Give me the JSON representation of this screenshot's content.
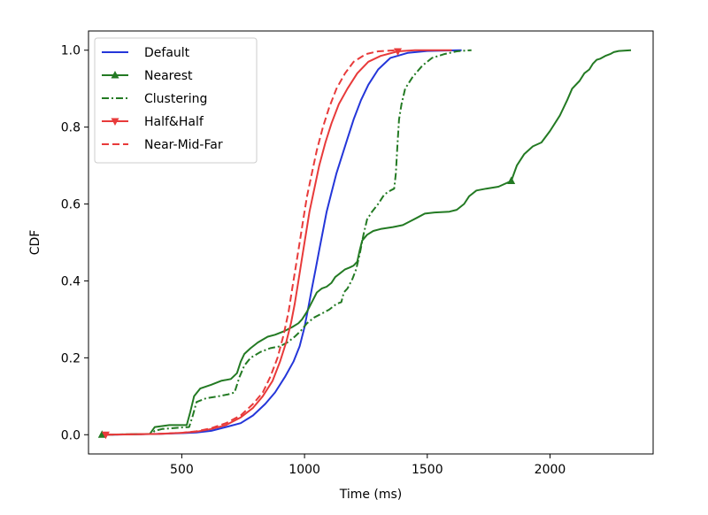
{
  "chart_data": {
    "type": "line",
    "xlabel": "Time (ms)",
    "ylabel": "CDF",
    "xlim": [
      120,
      2420
    ],
    "ylim": [
      -0.05,
      1.05
    ],
    "xticks": [
      500,
      1000,
      1500,
      2000
    ],
    "yticks": [
      0.0,
      0.2,
      0.4,
      0.6,
      0.8,
      1.0
    ],
    "xtick_labels": [
      "500",
      "1000",
      "1500",
      "2000"
    ],
    "ytick_labels": [
      "0.0",
      "0.2",
      "0.4",
      "0.6",
      "0.8",
      "1.0"
    ],
    "grid": false,
    "legend_position": "top-left",
    "series": [
      {
        "name": "Default",
        "color": "#2436d9",
        "style": "solid",
        "marker": "none",
        "points": [
          [
            200,
            0
          ],
          [
            400,
            0.002
          ],
          [
            500,
            0.004
          ],
          [
            560,
            0.006
          ],
          [
            620,
            0.01
          ],
          [
            680,
            0.02
          ],
          [
            740,
            0.03
          ],
          [
            790,
            0.05
          ],
          [
            840,
            0.08
          ],
          [
            880,
            0.11
          ],
          [
            920,
            0.15
          ],
          [
            955,
            0.19
          ],
          [
            980,
            0.23
          ],
          [
            1000,
            0.28
          ],
          [
            1015,
            0.33
          ],
          [
            1030,
            0.38
          ],
          [
            1045,
            0.43
          ],
          [
            1060,
            0.48
          ],
          [
            1075,
            0.53
          ],
          [
            1090,
            0.58
          ],
          [
            1110,
            0.63
          ],
          [
            1130,
            0.68
          ],
          [
            1150,
            0.72
          ],
          [
            1175,
            0.77
          ],
          [
            1200,
            0.82
          ],
          [
            1230,
            0.87
          ],
          [
            1260,
            0.91
          ],
          [
            1300,
            0.95
          ],
          [
            1350,
            0.98
          ],
          [
            1420,
            0.993
          ],
          [
            1500,
            0.998
          ],
          [
            1640,
            1.0
          ]
        ]
      },
      {
        "name": "Nearest",
        "color": "#237a23",
        "style": "solid",
        "marker": "triangle-up",
        "marker_x": [
          175,
          1842
        ],
        "points": [
          [
            175,
            0
          ],
          [
            370,
            0.002
          ],
          [
            390,
            0.02
          ],
          [
            450,
            0.025
          ],
          [
            520,
            0.025
          ],
          [
            535,
            0.06
          ],
          [
            550,
            0.1
          ],
          [
            575,
            0.12
          ],
          [
            620,
            0.13
          ],
          [
            660,
            0.14
          ],
          [
            700,
            0.145
          ],
          [
            725,
            0.16
          ],
          [
            740,
            0.19
          ],
          [
            755,
            0.21
          ],
          [
            780,
            0.225
          ],
          [
            810,
            0.24
          ],
          [
            850,
            0.255
          ],
          [
            880,
            0.26
          ],
          [
            920,
            0.27
          ],
          [
            950,
            0.28
          ],
          [
            975,
            0.29
          ],
          [
            990,
            0.3
          ],
          [
            1010,
            0.32
          ],
          [
            1030,
            0.345
          ],
          [
            1050,
            0.37
          ],
          [
            1070,
            0.38
          ],
          [
            1090,
            0.385
          ],
          [
            1110,
            0.395
          ],
          [
            1125,
            0.41
          ],
          [
            1145,
            0.42
          ],
          [
            1165,
            0.43
          ],
          [
            1185,
            0.435
          ],
          [
            1200,
            0.44
          ],
          [
            1215,
            0.45
          ],
          [
            1225,
            0.48
          ],
          [
            1235,
            0.505
          ],
          [
            1255,
            0.52
          ],
          [
            1280,
            0.53
          ],
          [
            1310,
            0.535
          ],
          [
            1360,
            0.54
          ],
          [
            1400,
            0.545
          ],
          [
            1430,
            0.555
          ],
          [
            1460,
            0.565
          ],
          [
            1490,
            0.575
          ],
          [
            1530,
            0.578
          ],
          [
            1590,
            0.58
          ],
          [
            1620,
            0.585
          ],
          [
            1650,
            0.6
          ],
          [
            1670,
            0.62
          ],
          [
            1700,
            0.635
          ],
          [
            1740,
            0.64
          ],
          [
            1790,
            0.645
          ],
          [
            1842,
            0.66
          ],
          [
            1865,
            0.7
          ],
          [
            1895,
            0.73
          ],
          [
            1930,
            0.75
          ],
          [
            1965,
            0.76
          ],
          [
            2000,
            0.79
          ],
          [
            2040,
            0.83
          ],
          [
            2070,
            0.87
          ],
          [
            2090,
            0.9
          ],
          [
            2120,
            0.92
          ],
          [
            2140,
            0.94
          ],
          [
            2160,
            0.95
          ],
          [
            2175,
            0.965
          ],
          [
            2190,
            0.975
          ],
          [
            2205,
            0.978
          ],
          [
            2225,
            0.985
          ],
          [
            2245,
            0.99
          ],
          [
            2260,
            0.995
          ],
          [
            2280,
            0.998
          ],
          [
            2330,
            1.0
          ]
        ]
      },
      {
        "name": "Clustering",
        "color": "#237a23",
        "style": "dashdot",
        "marker": "none",
        "points": [
          [
            175,
            0
          ],
          [
            375,
            0.002
          ],
          [
            390,
            0.01
          ],
          [
            420,
            0.015
          ],
          [
            480,
            0.018
          ],
          [
            530,
            0.02
          ],
          [
            545,
            0.05
          ],
          [
            560,
            0.085
          ],
          [
            600,
            0.095
          ],
          [
            650,
            0.1
          ],
          [
            690,
            0.105
          ],
          [
            715,
            0.11
          ],
          [
            735,
            0.15
          ],
          [
            755,
            0.18
          ],
          [
            780,
            0.2
          ],
          [
            820,
            0.215
          ],
          [
            860,
            0.225
          ],
          [
            900,
            0.23
          ],
          [
            930,
            0.24
          ],
          [
            960,
            0.255
          ],
          [
            985,
            0.27
          ],
          [
            1010,
            0.29
          ],
          [
            1040,
            0.305
          ],
          [
            1070,
            0.315
          ],
          [
            1100,
            0.325
          ],
          [
            1130,
            0.34
          ],
          [
            1150,
            0.345
          ],
          [
            1160,
            0.37
          ],
          [
            1175,
            0.38
          ],
          [
            1195,
            0.405
          ],
          [
            1210,
            0.43
          ],
          [
            1225,
            0.47
          ],
          [
            1240,
            0.52
          ],
          [
            1255,
            0.56
          ],
          [
            1275,
            0.58
          ],
          [
            1300,
            0.6
          ],
          [
            1325,
            0.625
          ],
          [
            1350,
            0.635
          ],
          [
            1365,
            0.64
          ],
          [
            1372,
            0.68
          ],
          [
            1378,
            0.75
          ],
          [
            1385,
            0.82
          ],
          [
            1395,
            0.86
          ],
          [
            1410,
            0.9
          ],
          [
            1440,
            0.93
          ],
          [
            1480,
            0.96
          ],
          [
            1520,
            0.98
          ],
          [
            1570,
            0.99
          ],
          [
            1620,
            0.997
          ],
          [
            1680,
            1.0
          ]
        ]
      },
      {
        "name": "Half&Half",
        "color": "#e83a3a",
        "style": "solid",
        "marker": "triangle-down",
        "marker_x": [
          190,
          1380
        ],
        "points": [
          [
            190,
            0
          ],
          [
            400,
            0.002
          ],
          [
            500,
            0.005
          ],
          [
            560,
            0.008
          ],
          [
            620,
            0.015
          ],
          [
            680,
            0.025
          ],
          [
            740,
            0.045
          ],
          [
            790,
            0.07
          ],
          [
            830,
            0.1
          ],
          [
            870,
            0.14
          ],
          [
            900,
            0.19
          ],
          [
            925,
            0.24
          ],
          [
            945,
            0.29
          ],
          [
            960,
            0.34
          ],
          [
            975,
            0.4
          ],
          [
            990,
            0.46
          ],
          [
            1005,
            0.52
          ],
          [
            1020,
            0.58
          ],
          [
            1040,
            0.64
          ],
          [
            1060,
            0.7
          ],
          [
            1085,
            0.76
          ],
          [
            1110,
            0.81
          ],
          [
            1140,
            0.86
          ],
          [
            1175,
            0.9
          ],
          [
            1215,
            0.94
          ],
          [
            1260,
            0.97
          ],
          [
            1310,
            0.985
          ],
          [
            1380,
            0.997
          ],
          [
            1450,
            1.0
          ],
          [
            1600,
            1.0
          ]
        ]
      },
      {
        "name": "Near-Mid-Far",
        "color": "#e83a3a",
        "style": "dashed",
        "marker": "none",
        "points": [
          [
            190,
            0
          ],
          [
            400,
            0.002
          ],
          [
            500,
            0.005
          ],
          [
            560,
            0.009
          ],
          [
            620,
            0.017
          ],
          [
            680,
            0.03
          ],
          [
            740,
            0.05
          ],
          [
            790,
            0.08
          ],
          [
            830,
            0.11
          ],
          [
            860,
            0.15
          ],
          [
            890,
            0.2
          ],
          [
            915,
            0.26
          ],
          [
            935,
            0.32
          ],
          [
            950,
            0.38
          ],
          [
            965,
            0.44
          ],
          [
            980,
            0.5
          ],
          [
            995,
            0.56
          ],
          [
            1010,
            0.62
          ],
          [
            1030,
            0.68
          ],
          [
            1050,
            0.74
          ],
          [
            1075,
            0.8
          ],
          [
            1100,
            0.85
          ],
          [
            1130,
            0.9
          ],
          [
            1165,
            0.94
          ],
          [
            1200,
            0.97
          ],
          [
            1250,
            0.99
          ],
          [
            1300,
            0.997
          ],
          [
            1380,
            1.0
          ]
        ]
      }
    ]
  }
}
